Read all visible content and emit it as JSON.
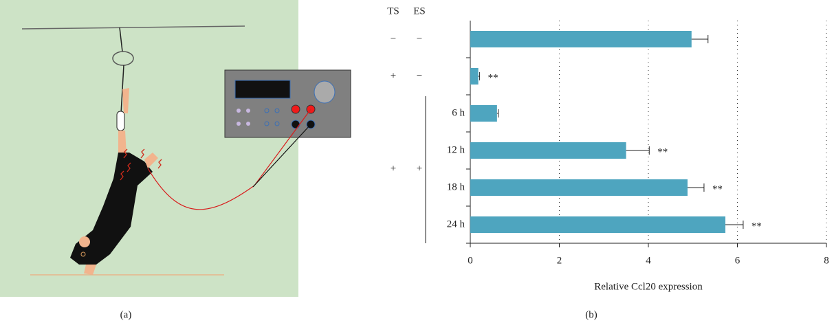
{
  "captions": [
    "(a)",
    "(b)"
  ],
  "chart_data": {
    "type": "bar",
    "orientation": "horizontal",
    "column_headers": [
      "TS",
      "ES"
    ],
    "groups": [
      {
        "ts": "−",
        "es": "−",
        "size": 1
      },
      {
        "ts": "+",
        "es": "−",
        "size": 1
      },
      {
        "ts": "+",
        "es": "+",
        "size": 4
      }
    ],
    "categories": [
      null,
      null,
      "6 h",
      "12 h",
      "18 h",
      "24 h"
    ],
    "values": [
      4.97,
      0.18,
      0.6,
      3.5,
      4.88,
      5.73
    ],
    "errors": [
      0.37,
      0.03,
      0.03,
      0.52,
      0.37,
      0.4
    ],
    "annotations": [
      null,
      "**",
      null,
      "**",
      "**",
      "**"
    ],
    "color": "#4ea5bf",
    "xlabel": "Relative Ccl20 expression",
    "xlim": [
      0,
      8
    ],
    "xticks": [
      0,
      2,
      4,
      6,
      8
    ],
    "grid": true
  }
}
